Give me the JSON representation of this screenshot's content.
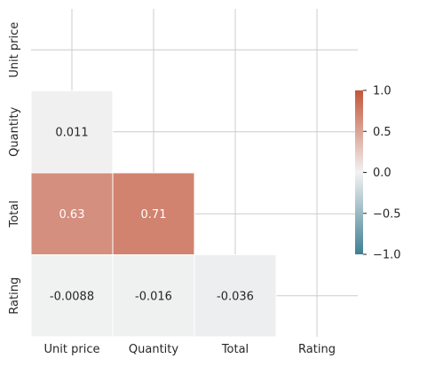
{
  "chart_data": {
    "type": "heatmap",
    "variables": [
      "Unit price",
      "Quantity",
      "Total",
      "Rating"
    ],
    "matrix": [
      [
        1.0,
        0.011,
        0.63,
        -0.0088
      ],
      [
        0.011,
        1.0,
        0.71,
        -0.016
      ],
      [
        0.63,
        0.71,
        1.0,
        -0.036
      ],
      [
        -0.0088,
        -0.016,
        -0.036,
        1.0
      ]
    ],
    "cell_labels": [
      [
        "",
        "",
        "",
        ""
      ],
      [
        "0.011",
        "",
        "",
        ""
      ],
      [
        "0.63",
        "0.71",
        "",
        ""
      ],
      [
        "-0.0088",
        "-0.016",
        "-0.036",
        ""
      ]
    ],
    "mask": "upper-triangle-and-diagonal",
    "colorbar": {
      "vmin": -1.0,
      "vmax": 1.0,
      "ticks": [
        1.0,
        0.5,
        0.0,
        -0.5,
        -1.0
      ],
      "tick_labels": [
        "1.0",
        "0.5",
        "0.0",
        "−0.5",
        "−1.0"
      ],
      "colors": {
        "low": "#3f7f93",
        "mid": "#f2f2f2",
        "high": "#c3553a"
      }
    },
    "grid": true,
    "title": "",
    "xlabel": "",
    "ylabel": ""
  }
}
